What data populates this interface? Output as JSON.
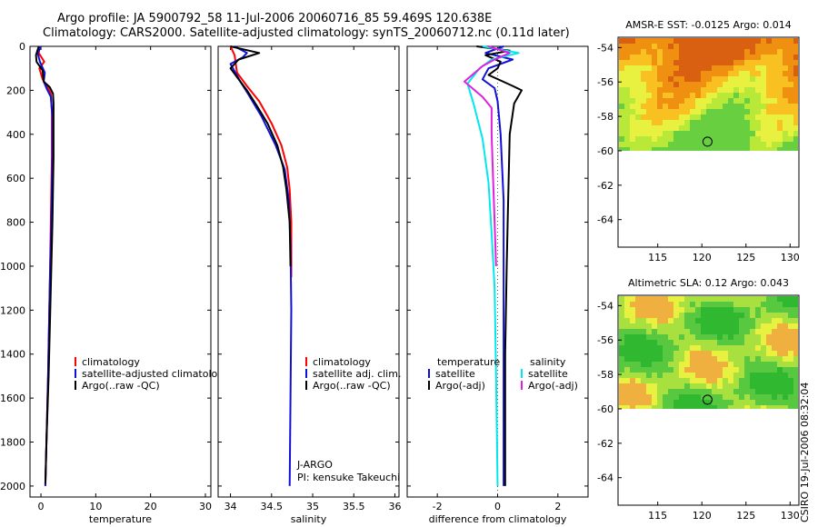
{
  "header": {
    "title_line1": "Argo profile: JA 5900792_58 11-Jul-2006 20060716_85 59.469S 120.638E",
    "title_line2": "Climatology: CARS2000. Satellite-adjusted climatology: synTS_20060712.nc (0.11d later)"
  },
  "side_stamp": "CSIRO 19-Jul-2006 08:32:04",
  "colors": {
    "red": "#ff0000",
    "blue": "#1010d8",
    "black": "#000000",
    "cyan": "#00e8ee",
    "magenta": "#e020e0",
    "grey": "#888888"
  },
  "chart_data": [
    {
      "id": "temperature",
      "type": "line",
      "xlabel": "temperature",
      "ylabel": "",
      "xlim": [
        -2,
        31
      ],
      "ylim": [
        2050,
        0
      ],
      "xticks": [
        0,
        10,
        20,
        30
      ],
      "yticks": [
        0,
        200,
        400,
        600,
        800,
        1000,
        1200,
        1400,
        1600,
        1800,
        2000
      ],
      "legend": [
        "climatology",
        "satellite-adjusted climatology",
        "Argo(..raw -QC)"
      ],
      "series": [
        {
          "name": "climatology",
          "color": "red",
          "points": [
            [
              -0.2,
              0
            ],
            [
              -0.4,
              30
            ],
            [
              0.6,
              70
            ],
            [
              -0.3,
              100
            ],
            [
              0.3,
              150
            ],
            [
              1.2,
              185
            ],
            [
              1.8,
              215
            ],
            [
              2.0,
              300
            ],
            [
              2.0,
              500
            ],
            [
              1.8,
              800
            ],
            [
              1.6,
              1100
            ],
            [
              1.3,
              1500
            ],
            [
              1.0,
              1800
            ],
            [
              0.8,
              2000
            ]
          ]
        },
        {
          "name": "satellite-adjusted climatology",
          "color": "blue",
          "points": [
            [
              0.0,
              0
            ],
            [
              -0.6,
              30
            ],
            [
              -0.2,
              70
            ],
            [
              0.7,
              120
            ],
            [
              0.5,
              160
            ],
            [
              1.1,
              195
            ],
            [
              1.8,
              230
            ],
            [
              2.1,
              320
            ],
            [
              2.1,
              500
            ],
            [
              1.9,
              800
            ],
            [
              1.6,
              1100
            ],
            [
              1.3,
              1500
            ],
            [
              1.0,
              1800
            ],
            [
              0.8,
              2000
            ]
          ]
        },
        {
          "name": "Argo(..raw -QC)",
          "color": "black",
          "points": [
            [
              -0.4,
              0
            ],
            [
              -0.9,
              40
            ],
            [
              -0.8,
              70
            ],
            [
              0.3,
              110
            ],
            [
              0.5,
              160
            ],
            [
              1.6,
              185
            ],
            [
              2.2,
              215
            ],
            [
              2.3,
              260
            ],
            [
              2.3,
              500
            ],
            [
              2.1,
              800
            ],
            [
              1.8,
              1100
            ],
            [
              1.4,
              1500
            ],
            [
              1.0,
              1800
            ],
            [
              0.8,
              1990
            ]
          ]
        }
      ],
      "annotations": []
    },
    {
      "id": "salinity",
      "type": "line",
      "xlabel": "salinity",
      "ylabel": "",
      "xlim": [
        33.85,
        36.05
      ],
      "ylim": [
        2050,
        0
      ],
      "xticks": [
        34,
        34.5,
        35,
        35.5,
        36
      ],
      "xticklabels": [
        "34",
        "34.5",
        "35",
        "35.5",
        "36"
      ],
      "yticks": [
        0,
        200,
        400,
        600,
        800,
        1000,
        1200,
        1400,
        1600,
        1800,
        2000
      ],
      "legend": [
        "climatology",
        "satellite adj. clim.",
        "Argo(..raw -QC)"
      ],
      "series": [
        {
          "name": "climatology",
          "color": "red",
          "points": [
            [
              34.0,
              0
            ],
            [
              34.05,
              40
            ],
            [
              34.08,
              120
            ],
            [
              34.2,
              180
            ],
            [
              34.35,
              250
            ],
            [
              34.5,
              350
            ],
            [
              34.62,
              450
            ],
            [
              34.69,
              550
            ],
            [
              34.72,
              650
            ],
            [
              34.74,
              800
            ],
            [
              34.74,
              1050
            ]
          ]
        },
        {
          "name": "satellite adj. clim.",
          "color": "blue",
          "points": [
            [
              34.05,
              0
            ],
            [
              34.2,
              30
            ],
            [
              34.15,
              50
            ],
            [
              34.0,
              80
            ],
            [
              34.06,
              120
            ],
            [
              34.12,
              160
            ],
            [
              34.22,
              220
            ],
            [
              34.38,
              320
            ],
            [
              34.55,
              450
            ],
            [
              34.66,
              560
            ],
            [
              34.71,
              700
            ],
            [
              34.73,
              900
            ],
            [
              34.74,
              1200
            ],
            [
              34.73,
              1600
            ],
            [
              34.72,
              2000
            ]
          ]
        },
        {
          "name": "Argo(..raw -QC)",
          "color": "black",
          "points": [
            [
              34.0,
              0
            ],
            [
              34.35,
              30
            ],
            [
              34.1,
              60
            ],
            [
              34.0,
              100
            ],
            [
              34.1,
              150
            ],
            [
              34.2,
              200
            ],
            [
              34.32,
              270
            ],
            [
              34.45,
              350
            ],
            [
              34.57,
              450
            ],
            [
              34.64,
              550
            ],
            [
              34.68,
              650
            ],
            [
              34.72,
              800
            ],
            [
              34.73,
              1000
            ]
          ]
        }
      ],
      "annotations": [
        "J-ARGO",
        "PI: kensuke Takeuchi"
      ]
    },
    {
      "id": "difference",
      "type": "line",
      "xlabel": "difference from climatology",
      "ylabel": "",
      "xlim": [
        -3,
        3
      ],
      "ylim": [
        2050,
        0
      ],
      "xticks": [
        -2,
        0,
        2
      ],
      "yticks": [
        0,
        200,
        400,
        600,
        800,
        1000,
        1200,
        1400,
        1600,
        1800,
        2000
      ],
      "legend_titles": [
        "temperature",
        "salinity"
      ],
      "legend": [
        "satellite",
        "Argo(-adj)",
        "satellite",
        "Argo(-adj)"
      ],
      "series": [
        {
          "name": "temperature satellite",
          "color": "blue",
          "points": [
            [
              0.2,
              0
            ],
            [
              -0.4,
              30
            ],
            [
              0.5,
              60
            ],
            [
              -0.3,
              100
            ],
            [
              -0.5,
              150
            ],
            [
              -0.1,
              190
            ],
            [
              0.0,
              250
            ],
            [
              0.1,
              400
            ],
            [
              0.2,
              700
            ],
            [
              0.2,
              1000
            ],
            [
              0.2,
              1400
            ],
            [
              0.2,
              1800
            ],
            [
              0.2,
              2000
            ]
          ]
        },
        {
          "name": "temperature Argo(-adj)",
          "color": "black",
          "points": [
            [
              -0.7,
              0
            ],
            [
              0.4,
              20
            ],
            [
              -0.4,
              40
            ],
            [
              0.1,
              70
            ],
            [
              0.0,
              100
            ],
            [
              -0.3,
              130
            ],
            [
              0.5,
              180
            ],
            [
              0.8,
              200
            ],
            [
              0.55,
              260
            ],
            [
              0.4,
              400
            ],
            [
              0.35,
              700
            ],
            [
              0.3,
              1000
            ],
            [
              0.25,
              1400
            ],
            [
              0.25,
              1800
            ],
            [
              0.25,
              2000
            ]
          ]
        },
        {
          "name": "salinity satellite",
          "color": "cyan",
          "points": [
            [
              -0.5,
              0
            ],
            [
              0.7,
              30
            ],
            [
              -0.2,
              60
            ],
            [
              -0.6,
              100
            ],
            [
              -1.0,
              170
            ],
            [
              -0.8,
              260
            ],
            [
              -0.5,
              420
            ],
            [
              -0.3,
              620
            ],
            [
              -0.2,
              850
            ],
            [
              -0.1,
              1100
            ],
            [
              -0.05,
              1500
            ],
            [
              0.0,
              2000
            ]
          ]
        },
        {
          "name": "salinity Argo(-adj)",
          "color": "magenta",
          "points": [
            [
              -0.3,
              0
            ],
            [
              0.4,
              30
            ],
            [
              -0.1,
              60
            ],
            [
              -0.5,
              90
            ],
            [
              -1.1,
              160
            ],
            [
              -0.5,
              230
            ],
            [
              -0.2,
              280
            ],
            [
              -0.2,
              400
            ],
            [
              -0.15,
              600
            ],
            [
              -0.1,
              800
            ],
            [
              -0.05,
              1000
            ]
          ]
        }
      ],
      "annotations": []
    }
  ],
  "maps": [
    {
      "title": "AMSR-E SST: -0.0125 Argo: 0.014",
      "xticks": [
        115,
        120,
        125,
        130
      ],
      "yticks": [
        -54,
        -56,
        -58,
        -60,
        -62,
        -64
      ],
      "marker": {
        "lon": 120.638,
        "lat": -59.469
      }
    },
    {
      "title": "Altimetric SLA: 0.12 Argo: 0.043",
      "xticks": [
        115,
        120,
        125,
        130
      ],
      "yticks": [
        -54,
        -56,
        -58,
        -60,
        -62,
        -64
      ],
      "marker": {
        "lon": 120.638,
        "lat": -59.469
      }
    }
  ]
}
